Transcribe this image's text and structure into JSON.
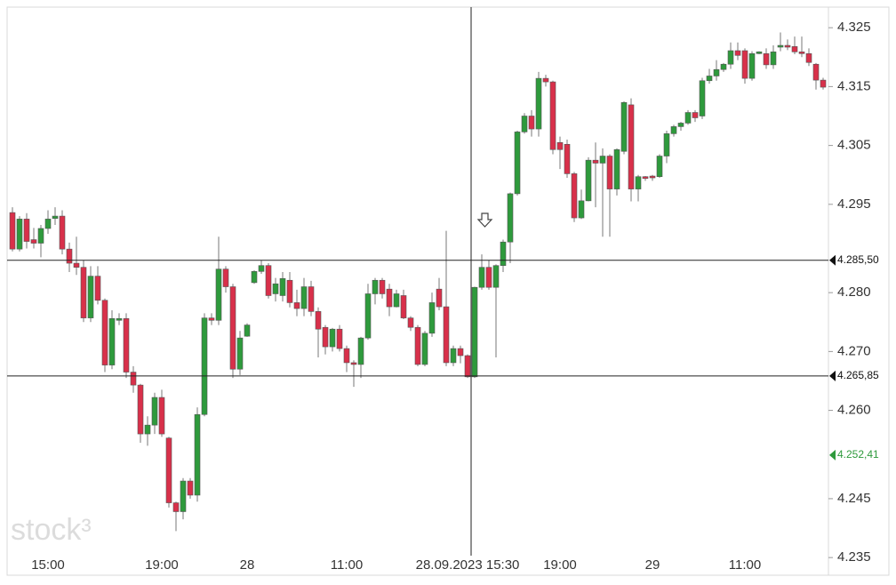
{
  "chart_data": {
    "type": "candlestick",
    "categories": [
      null,
      null,
      null,
      null,
      null,
      "15:00",
      null,
      null,
      null,
      null,
      null,
      null,
      null,
      null,
      null,
      null,
      null,
      null,
      null,
      null,
      null,
      "19:00",
      null,
      null,
      null,
      null,
      null,
      null,
      null,
      null,
      null,
      null,
      null,
      "28",
      null,
      null,
      null,
      null,
      null,
      null,
      null,
      null,
      null,
      null,
      null,
      null,
      null,
      "11:00",
      null,
      null,
      null,
      null,
      null,
      null,
      null,
      null,
      null,
      null,
      null,
      null,
      null,
      null,
      null,
      null,
      "28.09.2023 15:30",
      null,
      null,
      null,
      null,
      null,
      null,
      null,
      null,
      null,
      null,
      null,
      null,
      "19:00",
      null,
      null,
      null,
      null,
      null,
      null,
      null,
      null,
      null,
      null,
      null,
      null,
      "29",
      null,
      null,
      null,
      null,
      null,
      null,
      null,
      null,
      null,
      null,
      null,
      null,
      "11:00",
      null,
      null,
      null,
      null,
      null,
      null,
      null,
      null,
      null,
      null,
      null
    ],
    "open": [
      4.2936,
      4.2874,
      4.2925,
      4.289,
      4.2884,
      4.2909,
      4.2926,
      4.293,
      4.2874,
      4.285,
      4.2843,
      4.2757,
      4.2828,
      4.2787,
      4.2677,
      4.2753,
      4.2756,
      4.2665,
      4.2643,
      4.256,
      4.2575,
      4.2622,
      4.2553,
      4.2443,
      4.2428,
      4.248,
      4.2456,
      4.2593,
      4.2757,
      4.2753,
      4.284,
      4.281,
      4.267,
      4.2726,
      4.2817,
      4.2836,
      4.2846,
      4.2798,
      4.2795,
      4.2821,
      4.2783,
      4.2773,
      4.281,
      4.2768,
      4.2741,
      4.2708,
      4.2738,
      4.2705,
      4.2681,
      4.2678,
      4.2723,
      4.2798,
      4.2821,
      4.2806,
      4.2776,
      4.2795,
      4.2757,
      4.2741,
      4.2678,
      4.2731,
      4.2806,
      4.2776,
      4.2681,
      4.2705,
      4.2693,
      4.2657,
      4.2809,
      4.2843,
      4.2809,
      4.2846,
      4.2886,
      4.2968,
      4.3073,
      4.31,
      4.3078,
      4.3164,
      4.3158,
      4.3055,
      4.3052,
      4.3002,
      4.2927,
      4.2956,
      4.3025,
      4.302,
      4.3032,
      4.2976,
      4.304,
      4.3119,
      4.2976,
      4.2997,
      4.2998,
      4.2997,
      4.3032,
      4.307,
      4.3082,
      4.3088,
      4.3106,
      4.31,
      4.316,
      4.3168,
      4.3179,
      4.3188,
      4.3211,
      4.3211,
      4.3164,
      4.3206,
      4.3206,
      4.3187,
      4.3217,
      4.322,
      4.3218,
      4.3209,
      4.3206,
      4.3188,
      4.3161
    ],
    "close": [
      4.2874,
      4.2925,
      4.2887,
      4.2884,
      4.2909,
      4.2925,
      4.293,
      4.2874,
      4.285,
      4.2843,
      4.2757,
      4.2828,
      4.2787,
      4.2677,
      4.2756,
      4.2756,
      4.2665,
      4.2643,
      4.256,
      4.2575,
      4.2622,
      4.256,
      4.2443,
      4.2428,
      4.248,
      4.2456,
      4.2593,
      4.2757,
      4.2753,
      4.284,
      4.281,
      4.267,
      4.2723,
      4.2745,
      4.2836,
      4.2846,
      4.2795,
      4.2815,
      4.2824,
      4.2783,
      4.2773,
      4.281,
      4.2768,
      4.2738,
      4.2708,
      4.2738,
      4.2705,
      4.2681,
      4.2678,
      4.2723,
      4.2798,
      4.2821,
      4.2798,
      4.2776,
      4.2798,
      4.2757,
      4.2741,
      4.2678,
      4.2731,
      4.2783,
      4.2776,
      4.2681,
      4.2705,
      4.2693,
      4.2657,
      4.2809,
      4.2843,
      4.2809,
      4.2846,
      4.2886,
      4.2968,
      4.3073,
      4.31,
      4.3078,
      4.3164,
      4.3158,
      4.3043,
      4.3043,
      4.3002,
      4.2927,
      4.2956,
      4.3025,
      4.302,
      4.3032,
      4.2976,
      4.3043,
      4.3123,
      4.2976,
      4.2997,
      4.2994,
      4.2995,
      4.3032,
      4.307,
      4.3082,
      4.3088,
      4.3106,
      4.3097,
      4.316,
      4.3168,
      4.3179,
      4.3188,
      4.3211,
      4.3203,
      4.3164,
      4.3206,
      4.3209,
      4.3187,
      4.3209,
      4.322,
      4.3217,
      4.3209,
      4.3206,
      4.3191,
      4.3161,
      4.3149
    ],
    "high": [
      4.2945,
      4.293,
      4.2935,
      4.291,
      4.2915,
      4.294,
      4.2945,
      4.294,
      4.2885,
      4.2895,
      4.2855,
      4.2845,
      4.2845,
      4.279,
      4.277,
      4.2765,
      4.2765,
      4.2675,
      4.2645,
      4.259,
      4.263,
      4.2635,
      4.2555,
      4.2445,
      4.2485,
      4.2485,
      4.2605,
      4.2765,
      4.2765,
      4.2895,
      4.2845,
      4.2815,
      4.2735,
      4.2748,
      4.2838,
      4.2855,
      4.285,
      4.2825,
      4.2835,
      4.2835,
      4.2805,
      4.2825,
      4.282,
      4.2775,
      4.2745,
      4.274,
      4.2745,
      4.271,
      4.2685,
      4.2725,
      4.2815,
      4.2825,
      4.2825,
      4.2815,
      4.2805,
      4.2805,
      4.276,
      4.2745,
      4.2735,
      4.28,
      4.2825,
      4.2905,
      4.271,
      4.271,
      4.2695,
      4.281,
      4.2865,
      4.2855,
      4.2848,
      4.289,
      4.297,
      4.3075,
      4.3105,
      4.311,
      4.3175,
      4.317,
      4.316,
      4.3065,
      4.306,
      4.3005,
      4.2975,
      4.303,
      4.3055,
      4.3045,
      4.3035,
      4.3045,
      4.3125,
      4.313,
      4.3,
      4.2998,
      4.3,
      4.3035,
      4.3075,
      4.3085,
      4.309,
      4.311,
      4.311,
      4.3165,
      4.318,
      4.3195,
      4.319,
      4.3225,
      4.3225,
      4.3215,
      4.321,
      4.321,
      4.3215,
      4.322,
      4.3242,
      4.323,
      4.3235,
      4.3235,
      4.3215,
      4.319,
      4.3165
    ],
    "low": [
      4.287,
      4.287,
      4.2875,
      4.2875,
      4.286,
      4.29,
      4.2915,
      4.2865,
      4.2835,
      4.283,
      4.275,
      4.275,
      4.278,
      4.2665,
      4.267,
      4.2745,
      4.2655,
      4.263,
      4.2545,
      4.254,
      4.256,
      4.2555,
      4.2435,
      4.2395,
      4.2415,
      4.245,
      4.2445,
      4.259,
      4.2745,
      4.2745,
      4.28,
      4.2655,
      4.266,
      4.2725,
      4.2815,
      4.2832,
      4.279,
      4.2785,
      4.2785,
      4.2775,
      4.276,
      4.276,
      4.276,
      4.269,
      4.2695,
      4.27,
      4.27,
      4.2665,
      4.264,
      4.2655,
      4.272,
      4.278,
      4.279,
      4.276,
      4.2775,
      4.2755,
      4.2735,
      4.2675,
      4.2675,
      4.2725,
      4.277,
      4.2675,
      4.2675,
      4.268,
      4.2655,
      4.2655,
      4.2805,
      4.2805,
      4.269,
      4.2835,
      4.285,
      4.2965,
      4.307,
      4.3065,
      4.3065,
      4.315,
      4.3035,
      4.301,
      4.2995,
      4.292,
      4.2925,
      4.2955,
      4.2945,
      4.2895,
      4.2895,
      4.2965,
      4.3035,
      4.2955,
      4.2955,
      4.299,
      4.299,
      4.2995,
      4.302,
      4.3065,
      4.3075,
      4.3085,
      4.309,
      4.3095,
      4.3155,
      4.316,
      4.3175,
      4.318,
      4.3195,
      4.3155,
      4.316,
      4.3205,
      4.318,
      4.318,
      4.321,
      4.3212,
      4.3205,
      4.32,
      4.3185,
      4.3145,
      4.3145
    ],
    "up_color": "#2e9a3c",
    "down_color": "#d8304a",
    "ylim": [
      4.232,
      4.3285
    ],
    "yticks": [
      4.235,
      4.245,
      {
        "value": 4.26,
        "label": "4.260"
      },
      {
        "value": 4.27,
        "label": "4.270"
      },
      {
        "value": 4.28,
        "label": "4.280"
      },
      4.295,
      4.305,
      4.315,
      4.325
    ],
    "grid": false,
    "price_markers": [
      {
        "value": 4.2855,
        "label": "4.285,50",
        "color": "#111111",
        "crosshair": true
      },
      {
        "value": 4.26585,
        "label": "4.265,85",
        "color": "#111111",
        "crosshair": true
      },
      {
        "value": 4.25241,
        "label": "4.252,41",
        "color": "#2e9a3c",
        "crosshair": false
      }
    ],
    "crosshair_category": 64,
    "watermark": "stock³"
  }
}
